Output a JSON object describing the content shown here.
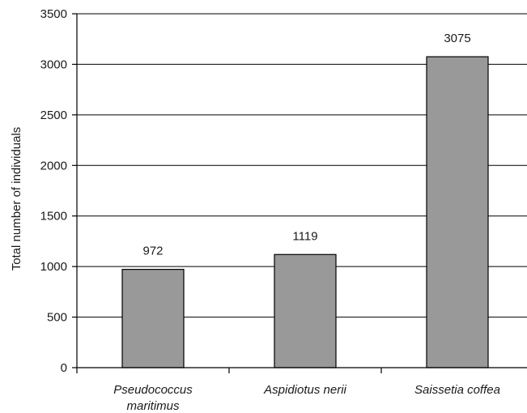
{
  "chart_data": {
    "type": "bar",
    "title": "",
    "xlabel": "",
    "ylabel": "Total number of individuals",
    "categories": [
      [
        "Pseudococcus",
        "maritimus"
      ],
      [
        "Aspidiotus nerii"
      ],
      [
        "Saissetia coffea"
      ]
    ],
    "values": [
      972,
      1119,
      3075
    ],
    "data_labels": [
      "972",
      "1119",
      "3075"
    ],
    "ylim": [
      0,
      3500
    ],
    "yticks": [
      0,
      500,
      1000,
      1500,
      2000,
      2500,
      3000,
      3500
    ],
    "ytick_labels": [
      "0",
      "500",
      "1000",
      "1500",
      "2000",
      "2500",
      "3000",
      "3500"
    ],
    "grid": true,
    "bar_color": "#999999",
    "bar_edge_color": "#000000",
    "grid_color": "#000000",
    "legend": "none"
  }
}
